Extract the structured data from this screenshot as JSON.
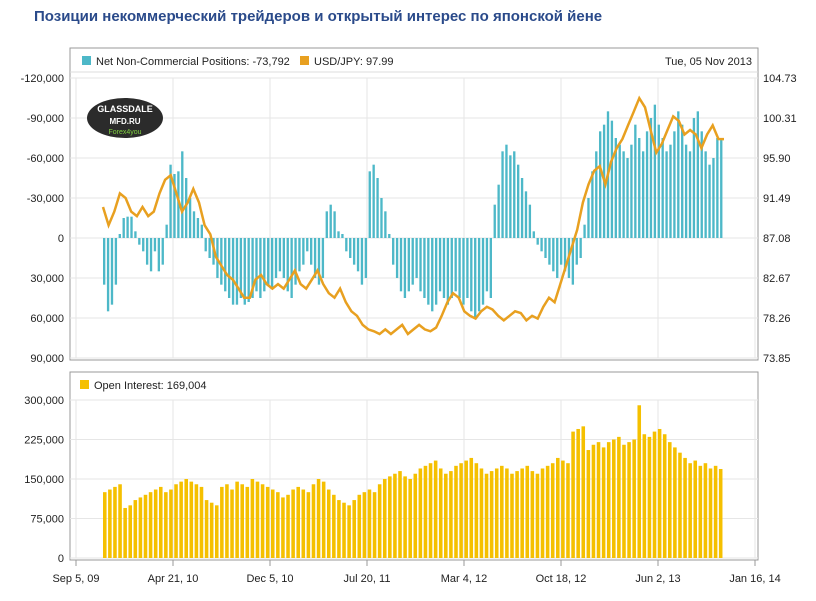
{
  "title": "Позиции некоммерческий трейдеров и открытый интерес по японской йене",
  "date_label": "Tue, 05 Nov 2013",
  "logo": {
    "line1": "GLASSDALE",
    "line2": "MFD.RU",
    "line3": "Forex4you"
  },
  "colors": {
    "positions": "#4db8c8",
    "usdjpy": "#e8a020",
    "open_interest": "#f5c000",
    "title": "#2a4a8a"
  },
  "x_ticks": [
    "Sep 5, 09",
    "Apr 21, 10",
    "Dec 5, 10",
    "Jul 20, 11",
    "Mar 4, 12",
    "Oct 18, 12",
    "Jun 2, 13",
    "Jan 16, 14"
  ],
  "chart_data": [
    {
      "type": "bar",
      "series": [
        {
          "name": "Net Non-Commercial Positions",
          "legend_label": "Net Non-Commercial Positions: -73,792",
          "axis": "left-inverted",
          "values": [
            35000,
            55000,
            50000,
            35000,
            -3000,
            -15000,
            -16000,
            -16000,
            -5000,
            5000,
            10000,
            20000,
            25000,
            10000,
            25000,
            20000,
            -10000,
            -55000,
            -48000,
            -50000,
            -65000,
            -45000,
            -30000,
            -20000,
            -15000,
            -10000,
            10000,
            15000,
            20000,
            30000,
            35000,
            40000,
            45000,
            50000,
            50000,
            45000,
            50000,
            48000,
            45000,
            40000,
            45000,
            40000,
            35000,
            38000,
            30000,
            25000,
            30000,
            40000,
            45000,
            35000,
            25000,
            20000,
            10000,
            20000,
            30000,
            35000,
            30000,
            -20000,
            -25000,
            -20000,
            -5000,
            -3000,
            10000,
            15000,
            20000,
            25000,
            35000,
            30000,
            -50000,
            -55000,
            -45000,
            -30000,
            -20000,
            -3000,
            20000,
            30000,
            40000,
            45000,
            40000,
            35000,
            30000,
            40000,
            45000,
            50000,
            55000,
            50000,
            40000,
            45000,
            50000,
            45000,
            40000,
            45000,
            50000,
            45000,
            55000,
            60000,
            55000,
            50000,
            40000,
            45000,
            -25000,
            -40000,
            -65000,
            -70000,
            -62000,
            -65000,
            -55000,
            -45000,
            -35000,
            -25000,
            -5000,
            5000,
            10000,
            15000,
            20000,
            25000,
            30000,
            20000,
            25000,
            30000,
            35000,
            20000,
            15000,
            -10000,
            -30000,
            -50000,
            -65000,
            -80000,
            -85000,
            -95000,
            -88000,
            -75000,
            -70000,
            -65000,
            -60000,
            -70000,
            -85000,
            -75000,
            -65000,
            -80000,
            -90000,
            -100000,
            -85000,
            -75000,
            -65000,
            -70000,
            -80000,
            -95000,
            -85000,
            -70000,
            -65000,
            -90000,
            -95000,
            -80000,
            -65000,
            -55000,
            -60000,
            -75000,
            -73792
          ]
        },
        {
          "name": "USD/JPY",
          "legend_label": "USD/JPY: 97.99",
          "axis": "right",
          "type": "line",
          "values": [
            90.5,
            88.5,
            90.0,
            92.0,
            91.5,
            90.0,
            89.5,
            90.5,
            89.5,
            90.0,
            92.0,
            93.5,
            94.0,
            92.0,
            90.0,
            91.0,
            92.5,
            91.0,
            88.5,
            87.5,
            85.0,
            84.0,
            83.0,
            82.5,
            81.5,
            80.5,
            80.5,
            82.5,
            83.0,
            82.0,
            81.5,
            82.0,
            81.5,
            82.5,
            83.5,
            82.0,
            81.5,
            82.5,
            83.5,
            82.0,
            81.0,
            80.5,
            81.5,
            80.0,
            79.0,
            78.5,
            77.5,
            77.0,
            76.8,
            76.5,
            77.0,
            76.5,
            77.0,
            77.5,
            76.5,
            77.0,
            77.5,
            77.0,
            76.8,
            77.2,
            78.5,
            80.0,
            81.0,
            80.5,
            79.0,
            78.5,
            78.2,
            79.0,
            79.5,
            79.2,
            78.5,
            78.0,
            78.5,
            79.0,
            78.8,
            78.0,
            78.5,
            78.2,
            79.5,
            80.5,
            80.0,
            82.0,
            84.0,
            86.0,
            88.0,
            91.0,
            93.0,
            94.5,
            95.0,
            93.0,
            95.5,
            97.0,
            98.0,
            99.5,
            101.0,
            102.5,
            101.5,
            99.0,
            96.5,
            97.5,
            99.0,
            100.5,
            100.0,
            98.5,
            99.0,
            98.5,
            97.0,
            98.5,
            99.5,
            98.0,
            97.99
          ]
        }
      ],
      "ylim_left": [
        -120000,
        90000
      ],
      "yticks_left": [
        "-120,000",
        "-90,000",
        "-60,000",
        "-30,000",
        "0",
        "30,000",
        "60,000",
        "90,000"
      ],
      "ylim_right": [
        73.85,
        104.73
      ],
      "yticks_right": [
        "104.73",
        "100.31",
        "95.90",
        "91.49",
        "87.08",
        "82.67",
        "78.26",
        "73.85"
      ],
      "grid": true,
      "legend": "top-left"
    },
    {
      "type": "bar",
      "series": [
        {
          "name": "Open Interest",
          "legend_label": "Open Interest: 169,004",
          "values": [
            125000,
            130000,
            135000,
            140000,
            95000,
            100000,
            110000,
            115000,
            120000,
            125000,
            130000,
            135000,
            125000,
            130000,
            140000,
            145000,
            150000,
            145000,
            140000,
            135000,
            110000,
            105000,
            100000,
            135000,
            140000,
            130000,
            145000,
            140000,
            135000,
            150000,
            145000,
            140000,
            135000,
            130000,
            125000,
            115000,
            120000,
            130000,
            135000,
            130000,
            125000,
            140000,
            150000,
            145000,
            130000,
            120000,
            110000,
            105000,
            100000,
            110000,
            120000,
            125000,
            130000,
            125000,
            140000,
            150000,
            155000,
            160000,
            165000,
            155000,
            150000,
            160000,
            170000,
            175000,
            180000,
            185000,
            170000,
            160000,
            165000,
            175000,
            180000,
            185000,
            190000,
            180000,
            170000,
            160000,
            165000,
            170000,
            175000,
            170000,
            160000,
            165000,
            170000,
            175000,
            165000,
            160000,
            170000,
            175000,
            180000,
            190000,
            185000,
            180000,
            240000,
            245000,
            250000,
            205000,
            215000,
            220000,
            210000,
            220000,
            225000,
            230000,
            215000,
            220000,
            225000,
            290000,
            235000,
            230000,
            240000,
            245000,
            235000,
            220000,
            210000,
            200000,
            190000,
            180000,
            185000,
            175000,
            180000,
            170000,
            175000,
            169004
          ]
        }
      ],
      "ylim": [
        0,
        300000
      ],
      "yticks": [
        "0",
        "75,000",
        "150,000",
        "225,000",
        "300,000"
      ],
      "grid": true,
      "legend": "top-left"
    }
  ]
}
